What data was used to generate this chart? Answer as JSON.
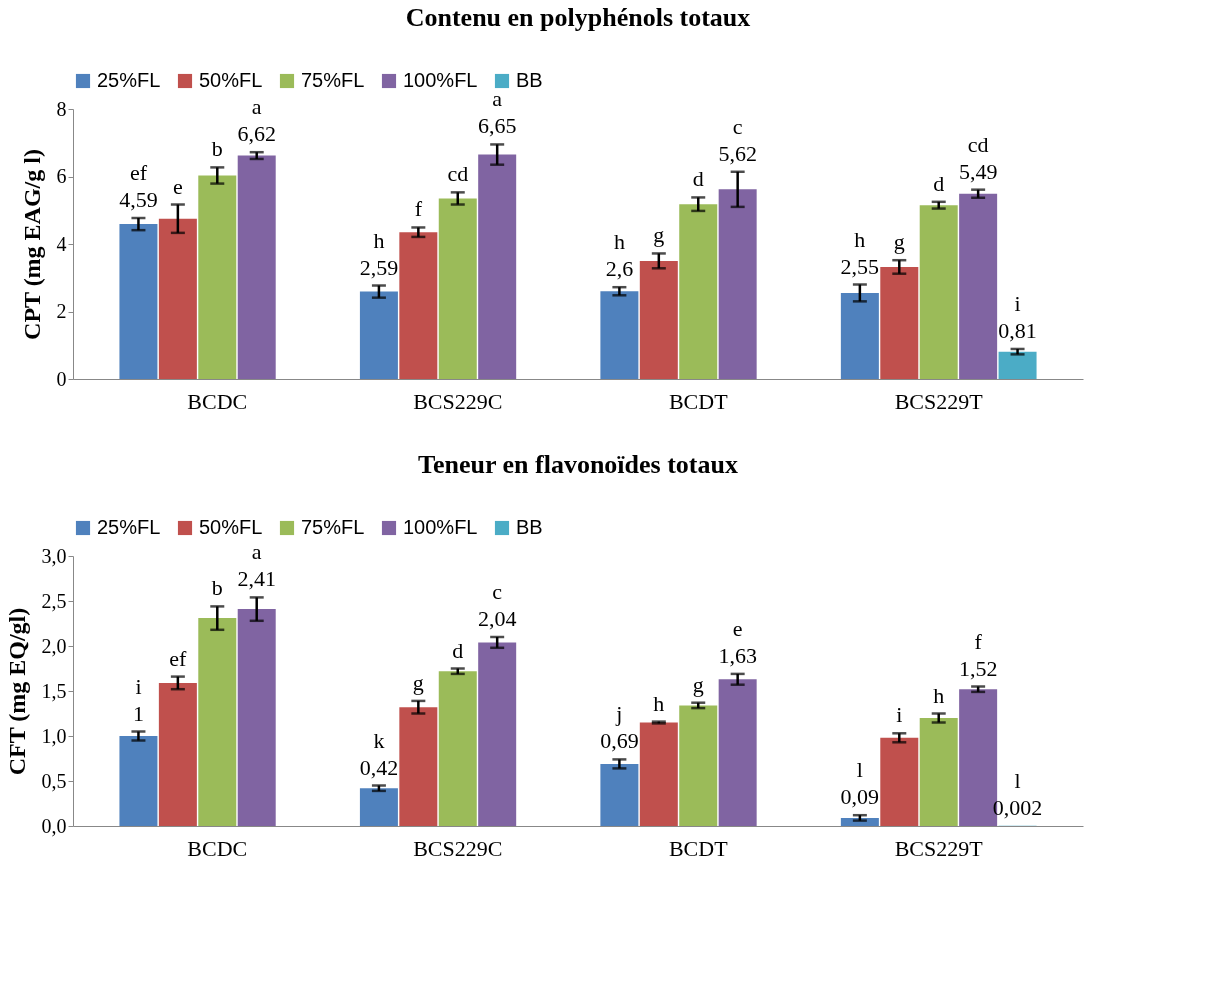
{
  "chart_data": [
    {
      "type": "bar",
      "title": "Contenu en polyphénols totaux",
      "ylabel": "CPT (mg EAG/g l)",
      "categories": [
        "BCDC",
        "BCS229C",
        "BCDT",
        "BCS229T"
      ],
      "ylim": [
        0,
        8
      ],
      "yticks": [
        0,
        2,
        4,
        6,
        8
      ],
      "grid": false,
      "legend": "top",
      "series": [
        {
          "name": "25%FL",
          "color": "#4f81bd",
          "values": [
            4.59,
            2.59,
            2.6,
            2.55
          ],
          "errors": [
            0.18,
            0.18,
            0.12,
            0.25
          ],
          "value_labels": [
            "ef\n4,59",
            "h\n2,59",
            "h\n2,6",
            "h\n2,55"
          ]
        },
        {
          "name": "50%FL",
          "color": "#c0504d",
          "values": [
            4.75,
            4.35,
            3.5,
            3.32
          ],
          "errors": [
            0.42,
            0.14,
            0.22,
            0.2
          ],
          "value_labels": [
            "e",
            "f",
            "g",
            "g"
          ]
        },
        {
          "name": "75%FL",
          "color": "#9bbb59",
          "values": [
            6.03,
            5.35,
            5.18,
            5.15
          ],
          "errors": [
            0.24,
            0.18,
            0.2,
            0.1
          ],
          "value_labels": [
            "b",
            "cd",
            "d",
            "d"
          ]
        },
        {
          "name": "100%FL",
          "color": "#8064a2",
          "values": [
            6.62,
            6.65,
            5.62,
            5.49
          ],
          "errors": [
            0.1,
            0.3,
            0.52,
            0.12
          ],
          "value_labels": [
            "a\n6,62",
            "a\n6,65",
            "c\n5,62",
            "cd\n5,49"
          ]
        },
        {
          "name": "BB",
          "color": "#4bacc6",
          "values": [
            null,
            null,
            null,
            0.81
          ],
          "errors": [
            null,
            null,
            null,
            0.08
          ],
          "value_labels": [
            null,
            null,
            null,
            "i\n0,81"
          ]
        }
      ]
    },
    {
      "type": "bar",
      "title": "Teneur en flavonoïdes totaux",
      "ylabel": "CFT (mg EQ/gl)",
      "categories": [
        "BCDC",
        "BCS229C",
        "BCDT",
        "BCS229T"
      ],
      "ylim": [
        0,
        3
      ],
      "yticks": [
        {
          "value": 0,
          "label": "0,0"
        },
        {
          "value": 0.5,
          "label": "0,5"
        },
        {
          "value": 1,
          "label": "1,0"
        },
        {
          "value": 1.5,
          "label": "1,5"
        },
        {
          "value": 2,
          "label": "2,0"
        },
        {
          "value": 2.5,
          "label": "2,5"
        },
        {
          "value": 3,
          "label": "3,0"
        }
      ],
      "grid": false,
      "legend": "top",
      "series": [
        {
          "name": "25%FL",
          "color": "#4f81bd",
          "values": [
            1,
            0.42,
            0.69,
            0.09
          ],
          "errors": [
            0.05,
            0.03,
            0.05,
            0.03
          ],
          "value_labels": [
            "i\n1",
            "k\n0,42",
            "j\n0,69",
            "l\n0,09"
          ]
        },
        {
          "name": "50%FL",
          "color": "#c0504d",
          "values": [
            1.59,
            1.32,
            1.15,
            0.98
          ],
          "errors": [
            0.07,
            0.07,
            0.01,
            0.05
          ],
          "value_labels": [
            "ef",
            "g",
            "h",
            "i"
          ]
        },
        {
          "name": "75%FL",
          "color": "#9bbb59",
          "values": [
            2.31,
            1.72,
            1.34,
            1.2
          ],
          "errors": [
            0.13,
            0.03,
            0.03,
            0.05
          ],
          "value_labels": [
            "b",
            "d",
            "g",
            "h"
          ]
        },
        {
          "name": "100%FL",
          "color": "#8064a2",
          "values": [
            2.41,
            2.04,
            1.63,
            1.52
          ],
          "errors": [
            0.13,
            0.06,
            0.06,
            0.03
          ],
          "value_labels": [
            "a\n2,41",
            "c\n2,04",
            "e\n1,63",
            "f\n1,52"
          ]
        },
        {
          "name": "BB",
          "color": "#4bacc6",
          "values": [
            null,
            null,
            null,
            0.002
          ],
          "errors": [
            null,
            null,
            null,
            null
          ],
          "value_labels": [
            null,
            null,
            null,
            "l\n0,002"
          ]
        }
      ]
    }
  ]
}
